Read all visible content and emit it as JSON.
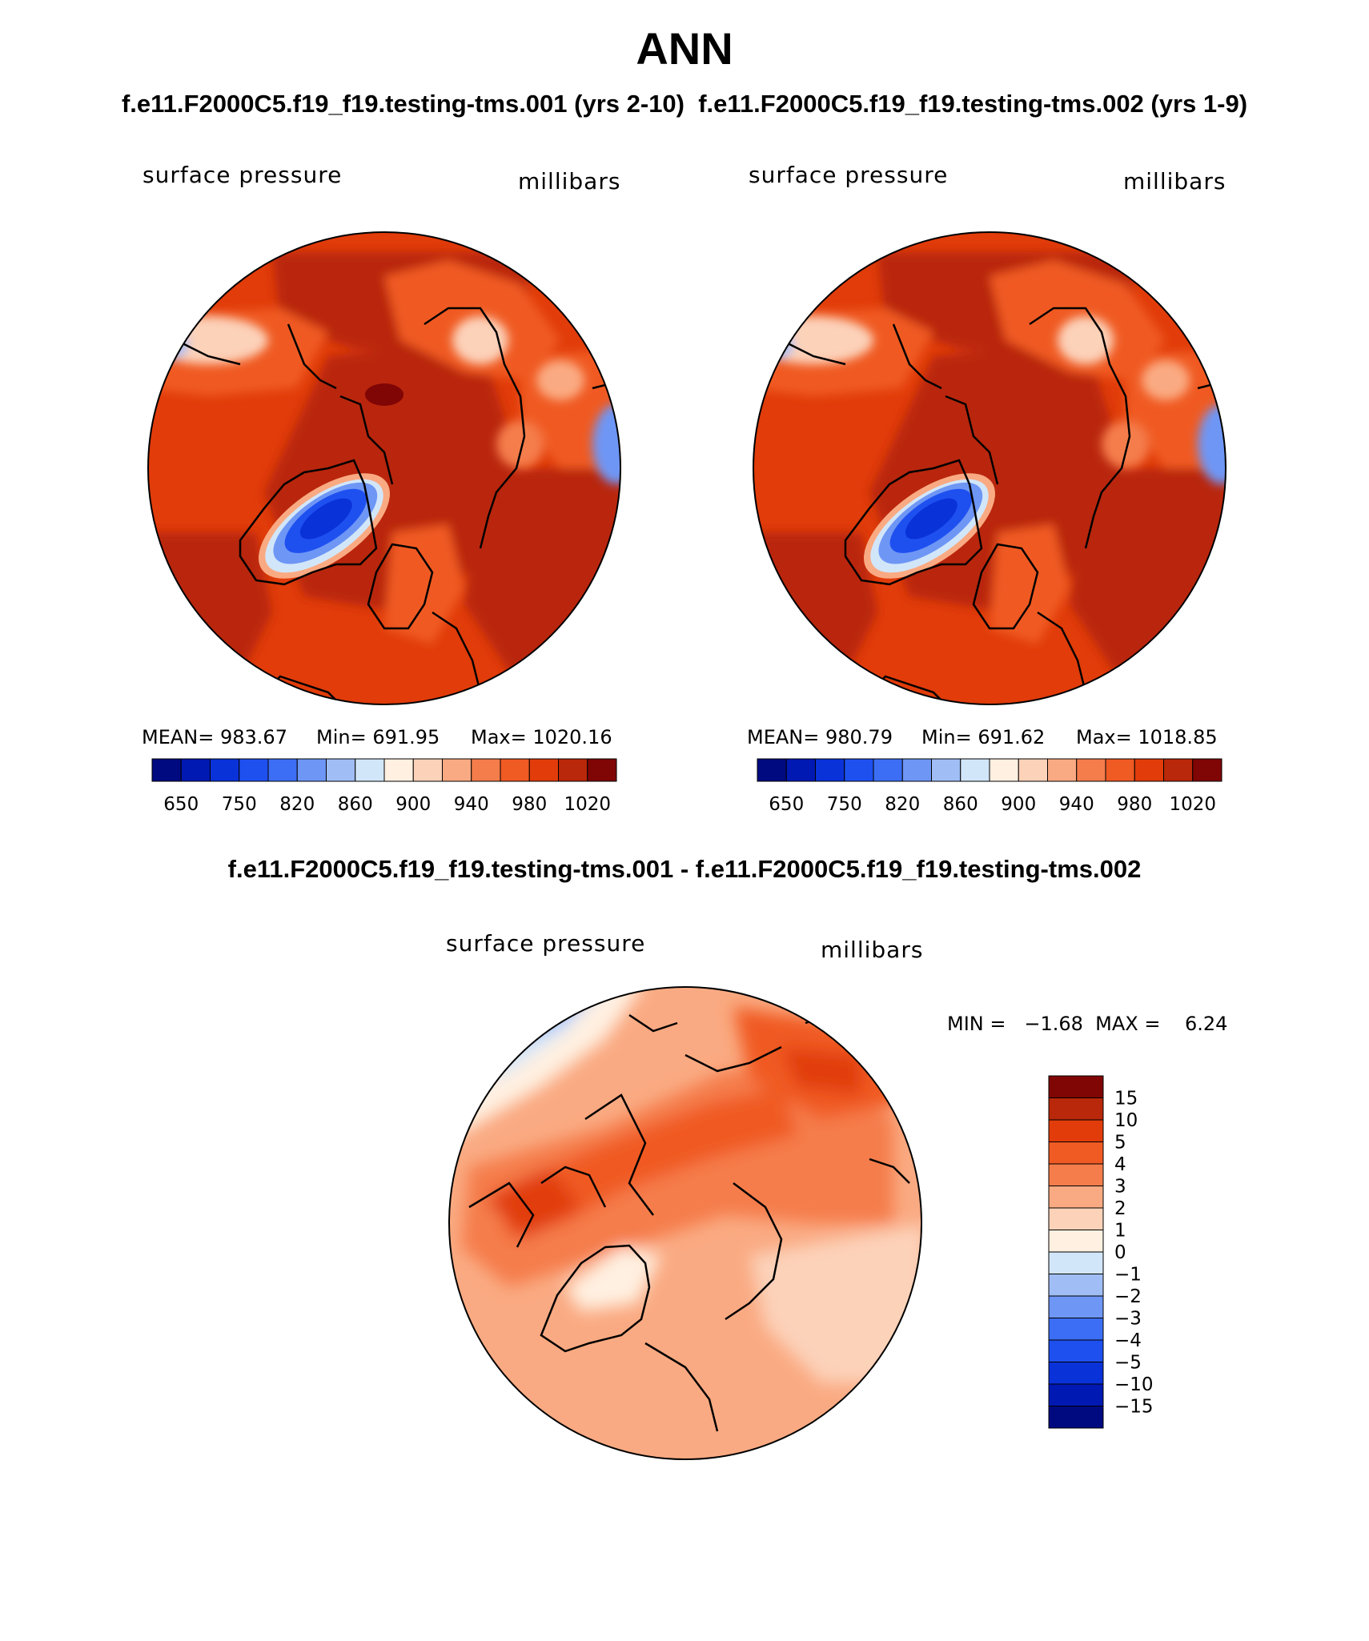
{
  "title": "ANN",
  "subtitle": {
    "case1": "f.e11.F2000C5.f19_f19.testing-tms.001 (yrs 2-10)",
    "case2": "f.e11.F2000C5.f19_f19.testing-tms.002 (yrs 1-9)"
  },
  "panels": [
    {
      "variable": "surface pressure",
      "units": "millibars",
      "mean": "MEAN= 983.67",
      "min": "Min= 691.95",
      "max": "Max= 1020.16"
    },
    {
      "variable": "surface pressure",
      "units": "millibars",
      "mean": "MEAN= 980.79",
      "min": "Min= 691.62",
      "max": "Max= 1018.85"
    }
  ],
  "colorbar": {
    "colors": [
      "#000a80",
      "#0019b3",
      "#0a32d9",
      "#1e50f0",
      "#3c6ef5",
      "#6e96f5",
      "#a0bef5",
      "#d2e6fa",
      "#fff0e1",
      "#fcd2b9",
      "#faaa82",
      "#f57d4b",
      "#f05a23",
      "#e13c0a",
      "#b9280a",
      "#800505"
    ],
    "labels": [
      "650",
      "750",
      "820",
      "860",
      "900",
      "940",
      "980",
      "1020"
    ]
  },
  "difference": {
    "title": "f.e11.F2000C5.f19_f19.testing-tms.001 - f.e11.F2000C5.f19_f19.testing-tms.002",
    "variable": "surface pressure",
    "units": "millibars",
    "minmax": "MIN =   −1.68  MAX =    6.24",
    "colorbar_colors": [
      "#800505",
      "#b9280a",
      "#e13c0a",
      "#f05a23",
      "#f57d4b",
      "#faaa82",
      "#fcd2b9",
      "#fff0e1",
      "#d2e6fa",
      "#a0bef5",
      "#6e96f5",
      "#3c6ef5",
      "#1e50f0",
      "#0a32d9",
      "#0019b3",
      "#000a80"
    ],
    "colorbar_labels": [
      "15",
      "10",
      "5",
      "4",
      "3",
      "2",
      "1",
      "0",
      "−1",
      "−2",
      "−3",
      "−4",
      "−5",
      "−10",
      "−15"
    ]
  }
}
